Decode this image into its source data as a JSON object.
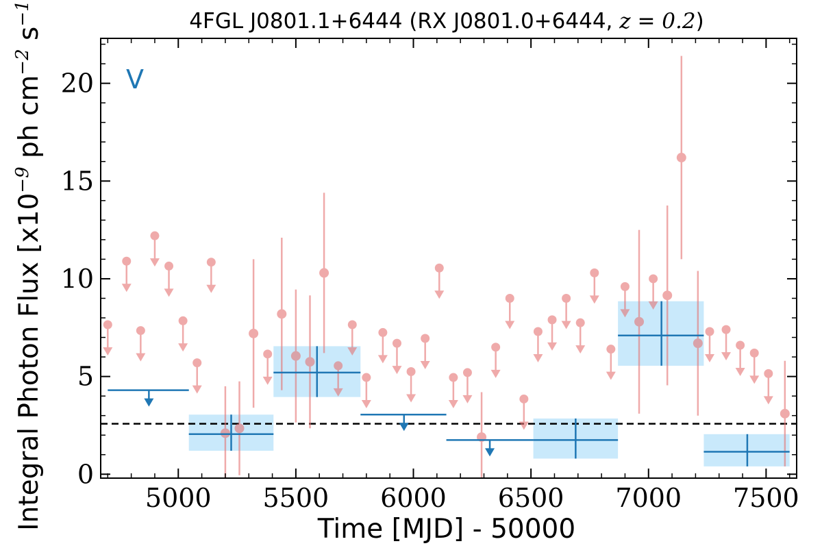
{
  "chart_data": {
    "type": "scatter",
    "title_parts": {
      "source": "4FGL J0801.1+6444 (RX J0801.0+6444, ",
      "z_symbol": "z",
      "equals": " = ",
      "z_value": "0.2",
      "close": ")"
    },
    "xlabel": "Time [MJD] - 50000",
    "ylabel_parts": {
      "prefix": "Integral Photon Flux [x10",
      "exp1": "−9",
      "mid": " ph cm",
      "exp2": "−2",
      "mid2": " s",
      "exp3": "−1",
      "close": "]"
    },
    "band_label": "V",
    "xlim": [
      4670,
      7630
    ],
    "ylim": [
      -0.2,
      22.3
    ],
    "xticks": [
      5000,
      5500,
      6000,
      6500,
      7000,
      7500
    ],
    "xtick_labels": [
      "5000",
      "5500",
      "6000",
      "6500",
      "7000",
      "7500"
    ],
    "yticks": [
      0,
      5,
      10,
      15,
      20
    ],
    "ytick_labels": [
      "0",
      "5",
      "10",
      "15",
      "20"
    ],
    "reference_line": {
      "y": 2.58,
      "style": "dashed",
      "color": "#000000"
    },
    "colors": {
      "short_bins": "#e57373",
      "long_bins": "#1f77b4",
      "long_band_fill": "#c9e9fb"
    },
    "series": [
      {
        "name": "",
        "kind": "short_bin_detections",
        "points": [
          {
            "x": 5200,
            "y": 2.1,
            "err": 2.4
          },
          {
            "x": 5260,
            "y": 2.35,
            "err": 2.4
          },
          {
            "x": 5320,
            "y": 7.2,
            "err": 3.8
          },
          {
            "x": 5440,
            "y": 8.2,
            "err": 3.9
          },
          {
            "x": 5500,
            "y": 6.05,
            "err": 3.4
          },
          {
            "x": 5560,
            "y": 5.75,
            "err": 3.4
          },
          {
            "x": 5620,
            "y": 10.3,
            "err": 4.1
          },
          {
            "x": 6290,
            "y": 1.9,
            "err": 2.3
          },
          {
            "x": 6960,
            "y": 7.8,
            "err": 4.7
          },
          {
            "x": 7080,
            "y": 9.15,
            "err": 4.6
          },
          {
            "x": 7140,
            "y": 16.2,
            "err": 5.2
          },
          {
            "x": 7210,
            "y": 6.7,
            "err": 3.7
          },
          {
            "x": 7580,
            "y": 3.1,
            "err": 2.7
          }
        ]
      },
      {
        "name": "",
        "kind": "short_bin_upper_limits",
        "values": [
          {
            "x": 4700,
            "y": 7.65
          },
          {
            "x": 4780,
            "y": 10.9
          },
          {
            "x": 4840,
            "y": 7.35
          },
          {
            "x": 4900,
            "y": 12.2
          },
          {
            "x": 4960,
            "y": 10.65
          },
          {
            "x": 5020,
            "y": 7.85
          },
          {
            "x": 5080,
            "y": 5.7
          },
          {
            "x": 5140,
            "y": 10.85
          },
          {
            "x": 5380,
            "y": 6.15
          },
          {
            "x": 5680,
            "y": 5.55
          },
          {
            "x": 5740,
            "y": 7.65
          },
          {
            "x": 5800,
            "y": 4.95
          },
          {
            "x": 5870,
            "y": 7.25
          },
          {
            "x": 5930,
            "y": 6.7
          },
          {
            "x": 5990,
            "y": 5.25
          },
          {
            "x": 6050,
            "y": 6.95
          },
          {
            "x": 6110,
            "y": 10.55
          },
          {
            "x": 6170,
            "y": 4.95
          },
          {
            "x": 6230,
            "y": 5.2
          },
          {
            "x": 6350,
            "y": 6.5
          },
          {
            "x": 6410,
            "y": 9.0
          },
          {
            "x": 6470,
            "y": 3.85
          },
          {
            "x": 6530,
            "y": 7.3
          },
          {
            "x": 6590,
            "y": 7.9
          },
          {
            "x": 6650,
            "y": 9.0
          },
          {
            "x": 6710,
            "y": 7.75
          },
          {
            "x": 6770,
            "y": 10.3
          },
          {
            "x": 6840,
            "y": 6.4
          },
          {
            "x": 6900,
            "y": 9.6
          },
          {
            "x": 7020,
            "y": 10.0
          },
          {
            "x": 7260,
            "y": 7.3
          },
          {
            "x": 7330,
            "y": 7.4
          },
          {
            "x": 7390,
            "y": 6.6
          },
          {
            "x": 7450,
            "y": 6.2
          },
          {
            "x": 7510,
            "y": 5.15
          }
        ]
      },
      {
        "name": "",
        "kind": "long_bin_detections",
        "bins": [
          {
            "x0": 5045,
            "x1": 5405,
            "xc": 5225,
            "y": 2.05,
            "ylo": 1.2,
            "yhi": 3.05
          },
          {
            "x0": 5405,
            "x1": 5775,
            "xc": 5590,
            "y": 5.2,
            "ylo": 3.95,
            "yhi": 6.55
          },
          {
            "x0": 6510,
            "x1": 6870,
            "xc": 6690,
            "y": 1.75,
            "ylo": 0.8,
            "yhi": 2.85
          },
          {
            "x0": 6870,
            "x1": 7235,
            "xc": 7055,
            "y": 7.1,
            "ylo": 5.55,
            "yhi": 8.85
          },
          {
            "x0": 7235,
            "x1": 7600,
            "xc": 7420,
            "y": 1.15,
            "ylo": 0.4,
            "yhi": 2.05
          }
        ]
      },
      {
        "name": "",
        "kind": "long_bin_upper_limits",
        "bins": [
          {
            "x0": 4700,
            "x1": 5045,
            "xc": 4875,
            "y": 4.3
          },
          {
            "x0": 5775,
            "x1": 6140,
            "xc": 5960,
            "y": 3.05
          },
          {
            "x0": 6140,
            "x1": 6510,
            "xc": 6325,
            "y": 1.75
          }
        ]
      }
    ]
  }
}
